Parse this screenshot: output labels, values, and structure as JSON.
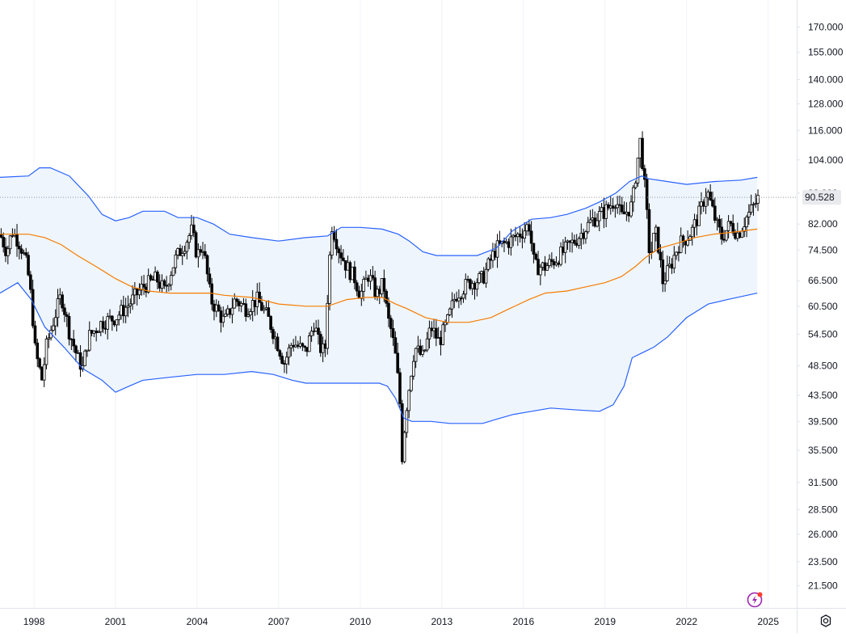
{
  "chart_data": {
    "type": "candlestick",
    "title": "",
    "xlabel": "",
    "ylabel": "",
    "scale": "log",
    "ylim": [
      19.8,
      188
    ],
    "xlim": [
      1996.75,
      2026.05
    ],
    "grid": {
      "vertical": true,
      "horizontal": false
    },
    "last_price": 90.528,
    "last_price_label": "90.528",
    "y_ticks": [
      21.5,
      23.5,
      26.0,
      28.5,
      31.5,
      35.5,
      39.5,
      43.5,
      48.5,
      54.5,
      60.5,
      66.5,
      74.5,
      82.0,
      92.0,
      104.0,
      116.0,
      128.0,
      140.0,
      155.0,
      170.0
    ],
    "y_tick_labels": [
      "21.500",
      "23.500",
      "26.000",
      "28.500",
      "31.500",
      "35.500",
      "39.500",
      "43.500",
      "48.500",
      "54.500",
      "60.500",
      "66.500",
      "74.500",
      "82.000",
      "92.000",
      "104.000",
      "116.000",
      "128.000",
      "140.000",
      "155.000",
      "170.000"
    ],
    "x_ticks": [
      1998,
      2001,
      2004,
      2007,
      2010,
      2013,
      2016,
      2019,
      2022,
      2025
    ],
    "x_tick_labels": [
      "1998",
      "2001",
      "2004",
      "2007",
      "2010",
      "2013",
      "2016",
      "2019",
      "2022",
      "2025"
    ],
    "price_path": [
      [
        1996.75,
        79
      ],
      [
        1997.0,
        74
      ],
      [
        1997.2,
        80
      ],
      [
        1997.5,
        76
      ],
      [
        1997.75,
        70
      ],
      [
        1997.9,
        62
      ],
      [
        1998.05,
        51
      ],
      [
        1998.3,
        46
      ],
      [
        1998.45,
        52
      ],
      [
        1998.7,
        57
      ],
      [
        1999.0,
        63
      ],
      [
        1999.3,
        55
      ],
      [
        1999.6,
        50
      ],
      [
        1999.8,
        48
      ],
      [
        2000.0,
        54
      ],
      [
        2000.5,
        57
      ],
      [
        2001.0,
        58
      ],
      [
        2001.5,
        61
      ],
      [
        2002.0,
        65
      ],
      [
        2002.5,
        67
      ],
      [
        2002.8,
        64
      ],
      [
        2003.2,
        72
      ],
      [
        2003.6,
        77
      ],
      [
        2003.8,
        80
      ],
      [
        2004.0,
        73
      ],
      [
        2004.2,
        76
      ],
      [
        2004.5,
        62
      ],
      [
        2005.0,
        57
      ],
      [
        2005.4,
        62
      ],
      [
        2005.8,
        60
      ],
      [
        2006.2,
        62
      ],
      [
        2006.6,
        58
      ],
      [
        2007.0,
        52
      ],
      [
        2007.2,
        49
      ],
      [
        2007.5,
        53
      ],
      [
        2008.0,
        51
      ],
      [
        2008.3,
        57
      ],
      [
        2008.5,
        52
      ],
      [
        2008.7,
        51
      ],
      [
        2008.95,
        82
      ],
      [
        2009.2,
        75
      ],
      [
        2009.5,
        70
      ],
      [
        2009.8,
        67
      ],
      [
        2010.0,
        63
      ],
      [
        2010.3,
        68
      ],
      [
        2010.6,
        63
      ],
      [
        2010.85,
        66
      ],
      [
        2011.0,
        58
      ],
      [
        2011.15,
        55
      ],
      [
        2011.3,
        50
      ],
      [
        2011.45,
        43
      ],
      [
        2011.55,
        34
      ],
      [
        2011.65,
        40
      ],
      [
        2011.8,
        45
      ],
      [
        2012.0,
        52
      ],
      [
        2012.3,
        50
      ],
      [
        2012.6,
        56
      ],
      [
        2012.9,
        53
      ],
      [
        2013.2,
        57
      ],
      [
        2013.5,
        63
      ],
      [
        2014.0,
        66
      ],
      [
        2014.5,
        67
      ],
      [
        2015.0,
        75
      ],
      [
        2015.5,
        77
      ],
      [
        2016.0,
        80
      ],
      [
        2016.2,
        82
      ],
      [
        2016.4,
        70
      ],
      [
        2016.8,
        70
      ],
      [
        2017.2,
        72
      ],
      [
        2017.6,
        75
      ],
      [
        2018.0,
        78
      ],
      [
        2018.5,
        83
      ],
      [
        2019.0,
        86
      ],
      [
        2019.4,
        90
      ],
      [
        2019.6,
        84
      ],
      [
        2020.0,
        88
      ],
      [
        2020.15,
        100
      ],
      [
        2020.3,
        112
      ],
      [
        2020.45,
        95
      ],
      [
        2020.65,
        72
      ],
      [
        2020.85,
        80
      ],
      [
        2021.0,
        74
      ],
      [
        2021.1,
        66
      ],
      [
        2021.4,
        70
      ],
      [
        2021.7,
        76
      ],
      [
        2022.0,
        78
      ],
      [
        2022.2,
        80
      ],
      [
        2022.5,
        86
      ],
      [
        2022.75,
        93
      ],
      [
        2022.9,
        88
      ],
      [
        2023.1,
        82
      ],
      [
        2023.3,
        78
      ],
      [
        2023.6,
        82
      ],
      [
        2023.9,
        79
      ],
      [
        2024.2,
        84
      ],
      [
        2024.5,
        88
      ],
      [
        2024.65,
        90.53
      ]
    ],
    "series": [
      {
        "name": "",
        "color": "#2962ff",
        "values": [
          [
            1996.75,
            97.5
          ],
          [
            1997.8,
            98
          ],
          [
            1998.2,
            101
          ],
          [
            1998.6,
            101
          ],
          [
            1999.3,
            98
          ],
          [
            2000.0,
            91
          ],
          [
            2000.5,
            85
          ],
          [
            2001.0,
            83
          ],
          [
            2001.5,
            84
          ],
          [
            2002.0,
            86
          ],
          [
            2002.8,
            86
          ],
          [
            2003.3,
            84
          ],
          [
            2004.0,
            84
          ],
          [
            2004.6,
            82
          ],
          [
            2005.2,
            79
          ],
          [
            2006.0,
            78
          ],
          [
            2007.0,
            77
          ],
          [
            2008.0,
            78
          ],
          [
            2008.8,
            78.5
          ],
          [
            2009.3,
            81
          ],
          [
            2010.0,
            81
          ],
          [
            2010.8,
            80.5
          ],
          [
            2011.4,
            79
          ],
          [
            2011.8,
            77
          ],
          [
            2012.3,
            74
          ],
          [
            2012.8,
            73
          ],
          [
            2013.4,
            73
          ],
          [
            2014.3,
            73
          ],
          [
            2015.0,
            75
          ],
          [
            2015.6,
            80
          ],
          [
            2016.3,
            83.5
          ],
          [
            2017.0,
            84
          ],
          [
            2017.6,
            85
          ],
          [
            2018.3,
            87
          ],
          [
            2018.8,
            89
          ],
          [
            2019.4,
            92
          ],
          [
            2019.9,
            96
          ],
          [
            2020.35,
            98
          ],
          [
            2020.6,
            97
          ],
          [
            2021.3,
            96
          ],
          [
            2022.0,
            95
          ],
          [
            2023.0,
            96
          ],
          [
            2024.0,
            96.5
          ],
          [
            2024.6,
            97.5
          ]
        ]
      },
      {
        "name": "",
        "color": "#f57c00",
        "values": [
          [
            1996.75,
            79
          ],
          [
            1997.8,
            79
          ],
          [
            1998.4,
            78
          ],
          [
            1999.0,
            76
          ],
          [
            1999.6,
            73
          ],
          [
            2000.3,
            70
          ],
          [
            2001.0,
            67
          ],
          [
            2001.6,
            65
          ],
          [
            2002.2,
            64
          ],
          [
            2003.0,
            63.5
          ],
          [
            2004.0,
            63.5
          ],
          [
            2004.5,
            63.5
          ],
          [
            2005.0,
            63
          ],
          [
            2006.0,
            62.5
          ],
          [
            2007.0,
            61
          ],
          [
            2008.0,
            60.5
          ],
          [
            2008.8,
            60.5
          ],
          [
            2009.5,
            62
          ],
          [
            2010.2,
            62.5
          ],
          [
            2010.8,
            62.5
          ],
          [
            2011.3,
            61
          ],
          [
            2011.7,
            60
          ],
          [
            2012.4,
            58
          ],
          [
            2013.2,
            57
          ],
          [
            2014.0,
            57
          ],
          [
            2014.8,
            58
          ],
          [
            2015.5,
            60
          ],
          [
            2016.2,
            62
          ],
          [
            2016.8,
            63.5
          ],
          [
            2017.6,
            64
          ],
          [
            2018.3,
            65
          ],
          [
            2019.0,
            66
          ],
          [
            2019.6,
            67.5
          ],
          [
            2020.1,
            70
          ],
          [
            2020.5,
            72.5
          ],
          [
            2021.0,
            75
          ],
          [
            2021.7,
            76.5
          ],
          [
            2022.3,
            78
          ],
          [
            2023.0,
            79
          ],
          [
            2023.6,
            79.5
          ],
          [
            2024.6,
            80.5
          ]
        ]
      },
      {
        "name": "",
        "color": "#2962ff",
        "values": [
          [
            1996.75,
            63.5
          ],
          [
            1997.4,
            66
          ],
          [
            1997.9,
            62
          ],
          [
            1998.4,
            56
          ],
          [
            1999.1,
            52
          ],
          [
            1999.8,
            48
          ],
          [
            2000.5,
            46
          ],
          [
            2001.0,
            44
          ],
          [
            2001.5,
            45
          ],
          [
            2002.0,
            46
          ],
          [
            2003.0,
            46.5
          ],
          [
            2004.0,
            47
          ],
          [
            2005.0,
            47
          ],
          [
            2006.0,
            47.5
          ],
          [
            2006.8,
            47
          ],
          [
            2007.5,
            46
          ],
          [
            2008.0,
            45.5
          ],
          [
            2009.0,
            45.5
          ],
          [
            2010.0,
            45.5
          ],
          [
            2010.7,
            45.5
          ],
          [
            2011.0,
            45
          ],
          [
            2011.3,
            43
          ],
          [
            2011.6,
            40
          ],
          [
            2011.9,
            39.5
          ],
          [
            2012.6,
            39.5
          ],
          [
            2013.3,
            39.2
          ],
          [
            2014.0,
            39.2
          ],
          [
            2014.5,
            39.2
          ],
          [
            2015.0,
            39.8
          ],
          [
            2015.6,
            40.5
          ],
          [
            2016.3,
            41
          ],
          [
            2017.0,
            41.5
          ],
          [
            2018.0,
            41.2
          ],
          [
            2018.8,
            41
          ],
          [
            2019.3,
            42
          ],
          [
            2019.7,
            45
          ],
          [
            2020.0,
            50
          ],
          [
            2020.4,
            51
          ],
          [
            2020.8,
            52
          ],
          [
            2021.3,
            54
          ],
          [
            2022.0,
            58
          ],
          [
            2022.8,
            61
          ],
          [
            2023.5,
            62
          ],
          [
            2024.6,
            63.5
          ]
        ]
      }
    ]
  },
  "ui": {
    "colors": {
      "candle_up_body": "#ffffff",
      "candle_down_body": "#000000",
      "candle_wick": "#000000",
      "band_fill": "#eef5fd",
      "grid": "#f0f3fa",
      "axis_line": "#e0e3eb",
      "price_line": "#9598a1",
      "price_tag_bg": "#e9eaee",
      "lightning": "#9c27b0",
      "lightning_dot": "#ff3b30"
    },
    "icons": {
      "settings": "gear-icon",
      "lightning": "lightning-icon"
    }
  }
}
